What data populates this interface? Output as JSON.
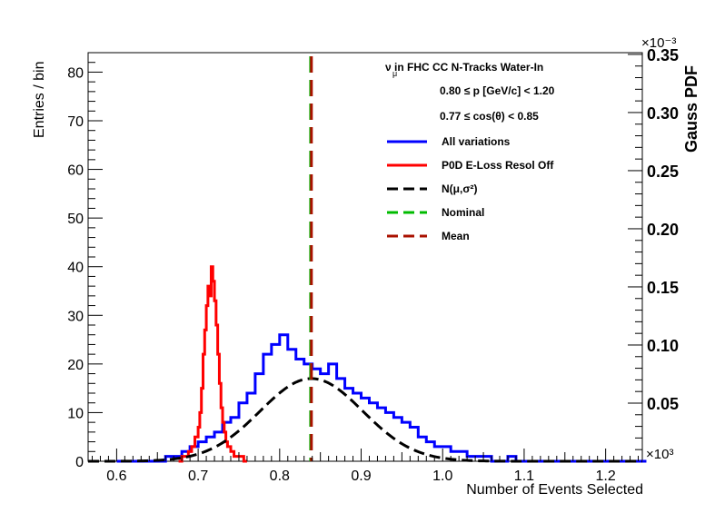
{
  "chart_data": {
    "type": "histogram",
    "xlabel": "Number of Events Selected",
    "ylabel": "Entries / bin",
    "y2label": "Gauss PDF",
    "x_multiplier": "×10³",
    "y2_multiplier": "×10⁻³",
    "xlim": [
      0.565,
      1.245
    ],
    "ylim": [
      0,
      84
    ],
    "y2lim": [
      0,
      0.3515
    ],
    "x_ticks": [
      "0.6",
      "0.7",
      "0.8",
      "0.9",
      "1.0",
      "1.1",
      "1.2"
    ],
    "x_tick_values": [
      0.6,
      0.7,
      0.8,
      0.9,
      1.0,
      1.1,
      1.2
    ],
    "y_ticks": [
      "0",
      "10",
      "20",
      "30",
      "40",
      "50",
      "60",
      "70",
      "80"
    ],
    "y_tick_values": [
      0,
      10,
      20,
      30,
      40,
      50,
      60,
      70,
      80
    ],
    "y2_ticks": [
      "0.05",
      "0.10",
      "0.15",
      "0.20",
      "0.25",
      "0.30",
      "0.35"
    ],
    "y2_tick_values": [
      0.05,
      0.1,
      0.15,
      0.2,
      0.25,
      0.3,
      0.35
    ],
    "annotations": [
      {
        "id": "title",
        "text": "ν  in FHC CC N-Tracks Water-In",
        "sub": "μ"
      },
      {
        "id": "momentum",
        "text": "0.80 ≤ p [GeV/c] < 1.20"
      },
      {
        "id": "angle",
        "text": "0.77 ≤ cos(θ) < 0.85"
      }
    ],
    "legend": [
      {
        "label": "All variations",
        "color": "#0000ff",
        "style": "solid"
      },
      {
        "label": "P0D E-Loss Resol Off",
        "color": "#ff0000",
        "style": "solid"
      },
      {
        "label": "N(μ,σ²)",
        "color": "#000000",
        "style": "dashed"
      },
      {
        "label": "Nominal",
        "color": "#00bb00",
        "style": "dashed"
      },
      {
        "label": "Mean",
        "color": "#aa1100",
        "style": "dashed"
      }
    ],
    "series": [
      {
        "name": "All variations",
        "color": "#0000ff",
        "type": "step",
        "x": [
          0.6,
          0.61,
          0.62,
          0.63,
          0.64,
          0.65,
          0.66,
          0.67,
          0.68,
          0.69,
          0.7,
          0.71,
          0.72,
          0.73,
          0.74,
          0.75,
          0.76,
          0.77,
          0.78,
          0.79,
          0.8,
          0.81,
          0.82,
          0.83,
          0.84,
          0.85,
          0.86,
          0.87,
          0.88,
          0.89,
          0.9,
          0.91,
          0.92,
          0.93,
          0.94,
          0.95,
          0.96,
          0.97,
          0.98,
          0.99,
          1.0,
          1.01,
          1.02,
          1.03,
          1.04,
          1.05,
          1.06,
          1.07,
          1.08,
          1.09,
          1.1,
          1.11,
          1.12,
          1.13,
          1.14,
          1.15,
          1.16,
          1.17,
          1.18,
          1.19,
          1.2,
          1.21,
          1.22,
          1.23,
          1.24
        ],
        "values": [
          0,
          0,
          0,
          0,
          0,
          0,
          1,
          1,
          2,
          3,
          4,
          5,
          6,
          8,
          9,
          12,
          14,
          18,
          22,
          24,
          26,
          23,
          21,
          20,
          19,
          18,
          20,
          17,
          15,
          14,
          13,
          12,
          11,
          10,
          9,
          8,
          7,
          5,
          4,
          3,
          3,
          2,
          2,
          1,
          1,
          1,
          0,
          0,
          1,
          0,
          0,
          0,
          0,
          0,
          0,
          0,
          0,
          0,
          0,
          0,
          0,
          0,
          0,
          0,
          0
        ]
      },
      {
        "name": "P0D E-Loss Resol Off",
        "color": "#ff0000",
        "type": "step",
        "x": [
          0.676,
          0.68,
          0.684,
          0.688,
          0.692,
          0.696,
          0.7,
          0.702,
          0.704,
          0.706,
          0.708,
          0.71,
          0.712,
          0.714,
          0.716,
          0.718,
          0.72,
          0.722,
          0.724,
          0.726,
          0.728,
          0.73,
          0.732,
          0.734,
          0.736,
          0.74,
          0.744,
          0.748,
          0.752,
          0.756
        ],
        "values": [
          0,
          1,
          1,
          2,
          3,
          5,
          7,
          10,
          15,
          22,
          27,
          32,
          36,
          34,
          40,
          37,
          33,
          28,
          22,
          16,
          11,
          8,
          6,
          4,
          3,
          2,
          1,
          1,
          1,
          0
        ]
      },
      {
        "name": "N(μ,σ²)",
        "color": "#000000",
        "type": "gauss",
        "mean": 0.839,
        "sigma": 0.063,
        "peak_entries": 17
      }
    ],
    "vlines": [
      {
        "name": "Nominal",
        "x": 0.838,
        "color": "#00bb00"
      },
      {
        "name": "Mean",
        "x": 0.839,
        "color": "#aa1100"
      }
    ]
  }
}
